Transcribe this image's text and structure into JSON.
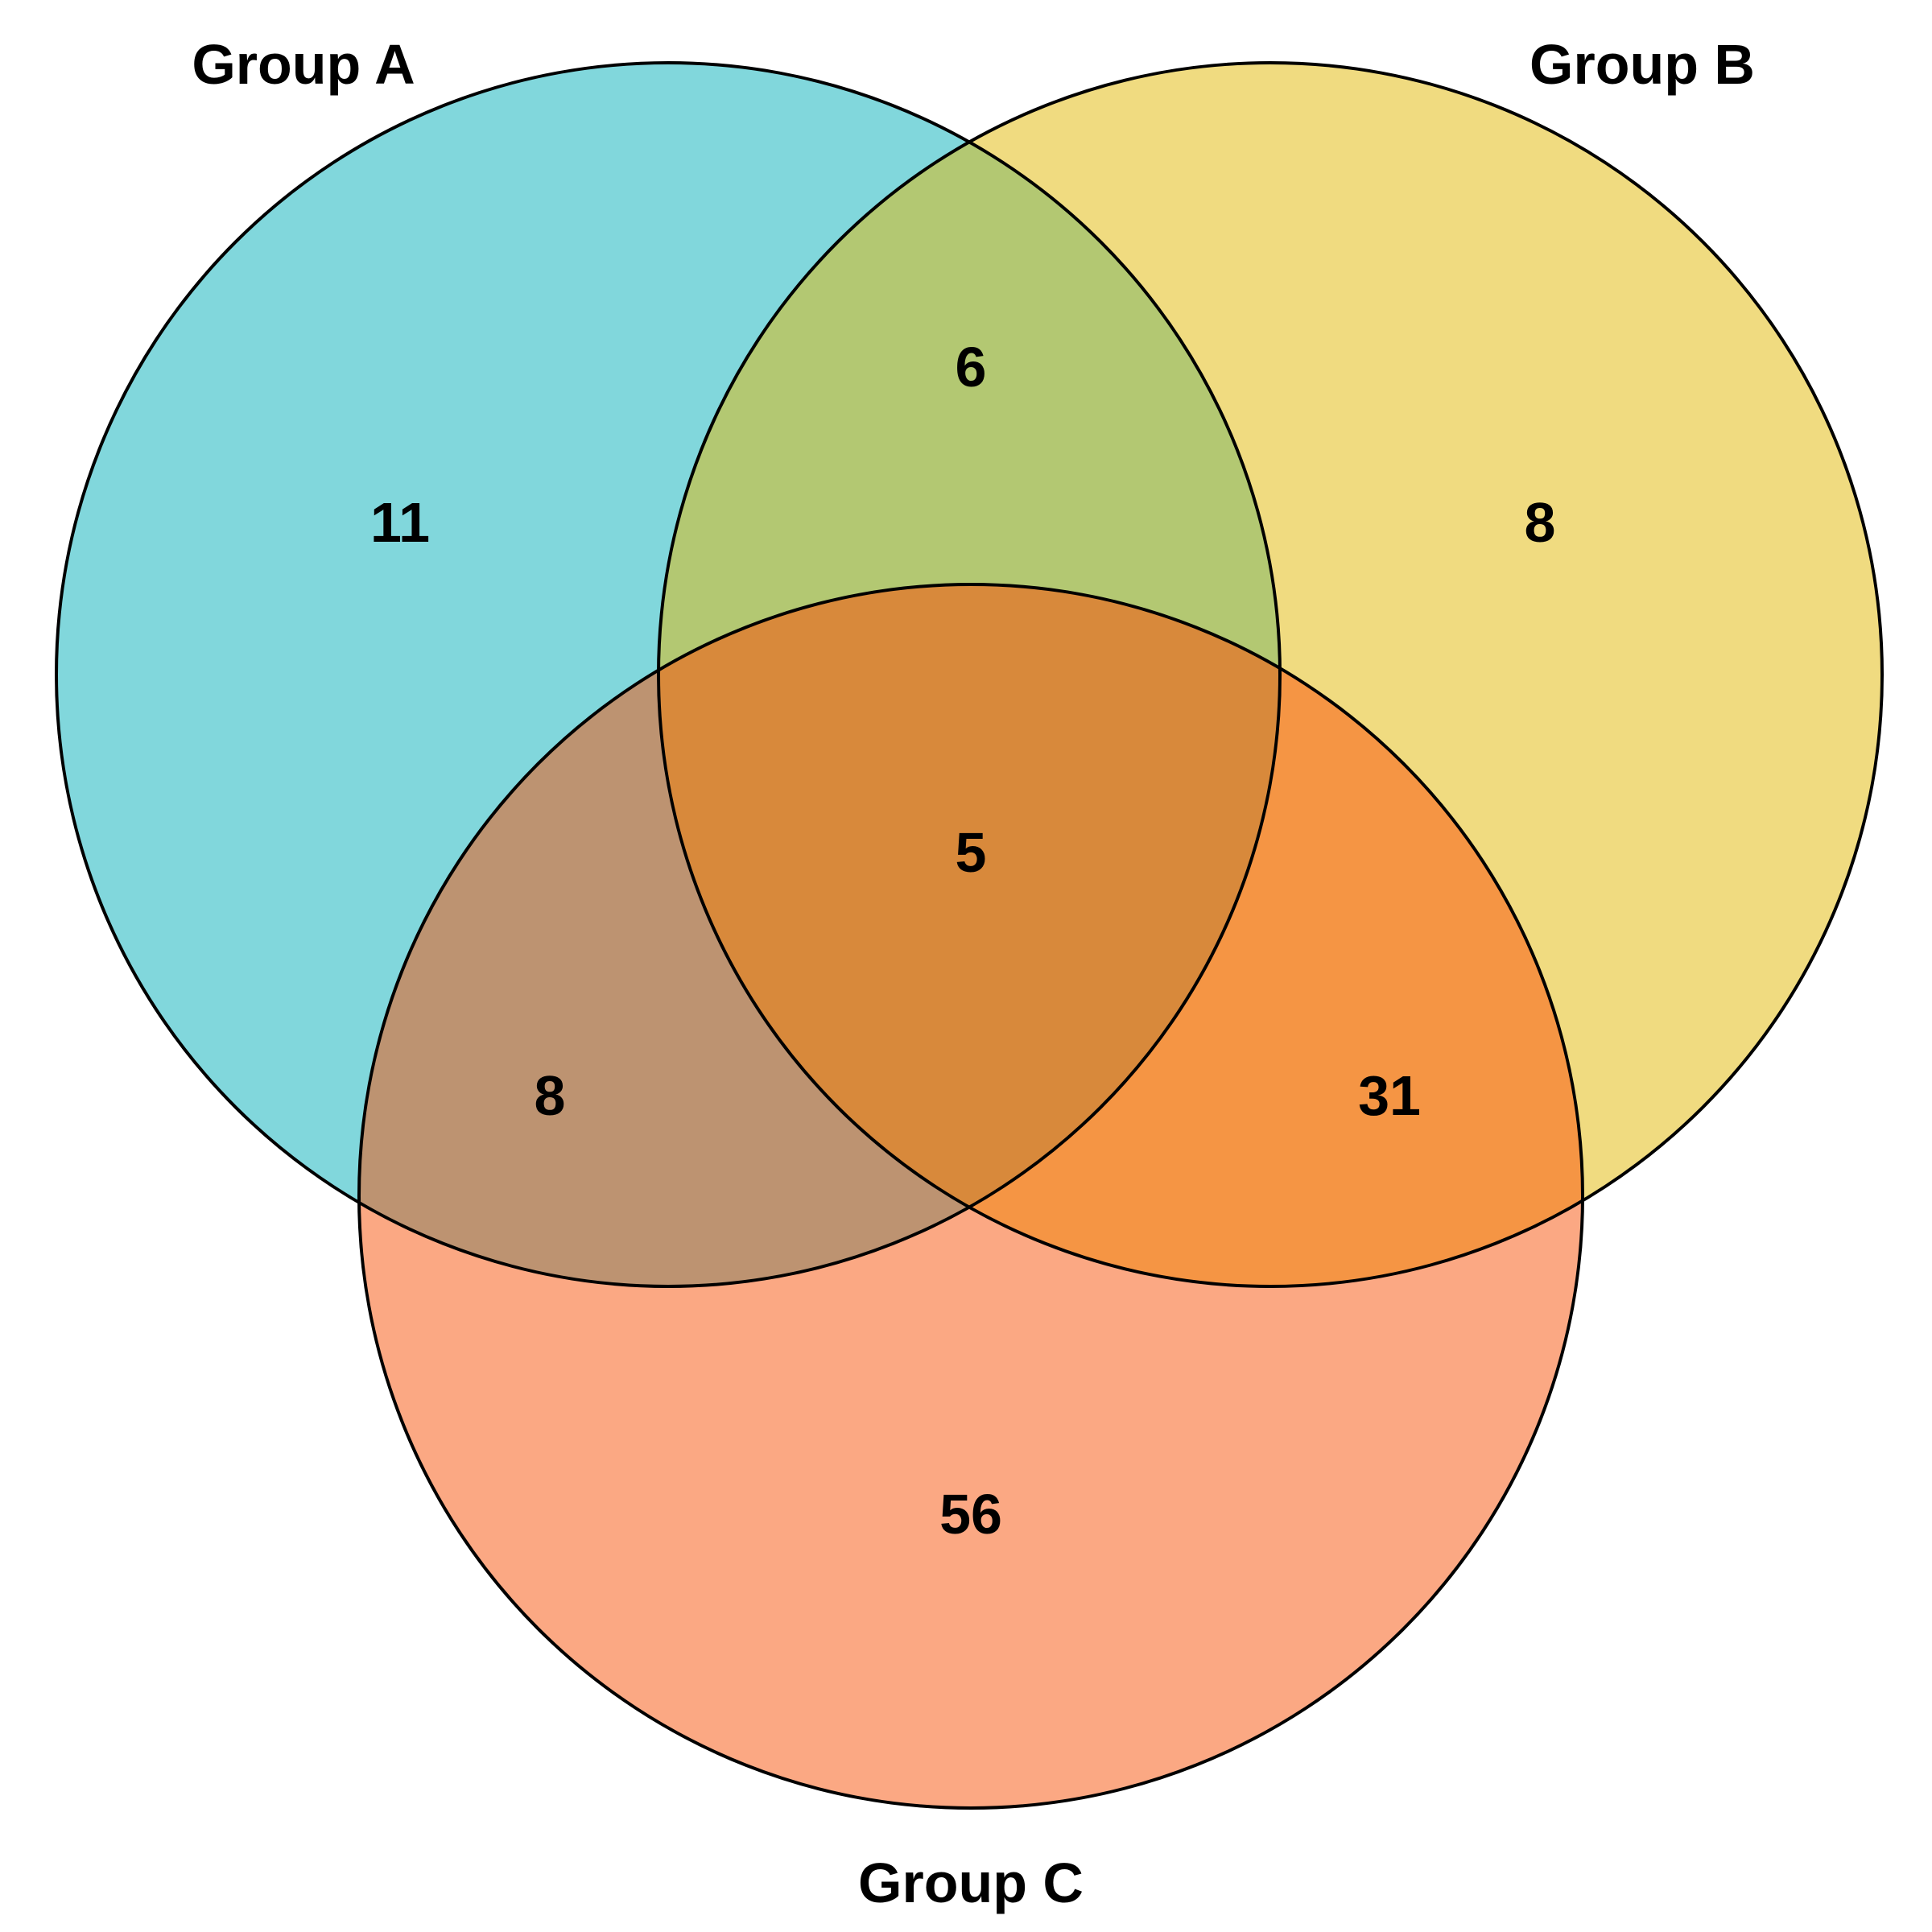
{
  "chart_data": {
    "type": "venn",
    "sets": [
      {
        "name": "Group A",
        "color": "#81D7DC"
      },
      {
        "name": "Group B",
        "color": "#F0DB80"
      },
      {
        "name": "Group C",
        "color": "#FBA883"
      }
    ],
    "regions": {
      "A_only": 11,
      "B_only": 8,
      "C_only": 56,
      "A_and_B_only": 6,
      "A_and_C_only": 8,
      "B_and_C_only": 31,
      "A_and_B_and_C": 5
    },
    "region_colors": {
      "A_and_B_only": "#B3C872",
      "A_and_C_only": "#BD9371",
      "B_and_C_only": "#F59544",
      "A_and_B_and_C": "#D8893B"
    }
  }
}
